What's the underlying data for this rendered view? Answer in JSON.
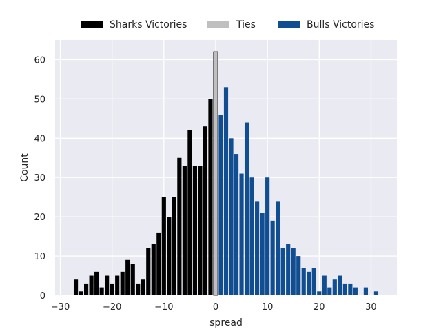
{
  "chart_data": {
    "type": "bar",
    "xlabel": "spread",
    "ylabel": "Count",
    "xlim": [
      -31,
      35
    ],
    "ylim": [
      0,
      65
    ],
    "xticks": [
      -30,
      -20,
      -10,
      0,
      10,
      20,
      30
    ],
    "yticks": [
      0,
      10,
      20,
      30,
      40,
      50,
      60
    ],
    "grid": true,
    "legend_position": "top-center",
    "legend": [
      {
        "label": "Sharks Victories",
        "color": "#000000"
      },
      {
        "label": "Ties",
        "color": "#bfbfbf"
      },
      {
        "label": "Bulls Victories",
        "color": "#114e91"
      }
    ],
    "series": [
      {
        "name": "Sharks Victories",
        "color": "#000000",
        "x": [
          -27,
          -26,
          -25,
          -24,
          -23,
          -22,
          -21,
          -20,
          -19,
          -18,
          -17,
          -16,
          -15,
          -14,
          -13,
          -12,
          -11,
          -10,
          -9,
          -8,
          -7,
          -6,
          -5,
          -4,
          -3,
          -2,
          -1
        ],
        "values": [
          4,
          1,
          3,
          5,
          6,
          2,
          5,
          3,
          5,
          6,
          9,
          8,
          3,
          4,
          12,
          13,
          16,
          25,
          20,
          25,
          35,
          33,
          42,
          33,
          33,
          43,
          50
        ]
      },
      {
        "name": "Ties",
        "color": "#bfbfbf",
        "x": [
          0
        ],
        "values": [
          62
        ]
      },
      {
        "name": "Bulls Victories",
        "color": "#114e91",
        "x": [
          1,
          2,
          3,
          4,
          5,
          6,
          7,
          8,
          9,
          10,
          11,
          12,
          13,
          14,
          15,
          16,
          17,
          18,
          19,
          20,
          21,
          22,
          23,
          24,
          25,
          26,
          27,
          29,
          31
        ],
        "values": [
          46,
          53,
          40,
          36,
          31,
          44,
          30,
          24,
          21,
          30,
          19,
          24,
          12,
          13,
          12,
          10,
          7,
          6,
          7,
          1,
          5,
          2,
          4,
          5,
          3,
          3,
          2,
          2,
          1
        ]
      }
    ]
  }
}
